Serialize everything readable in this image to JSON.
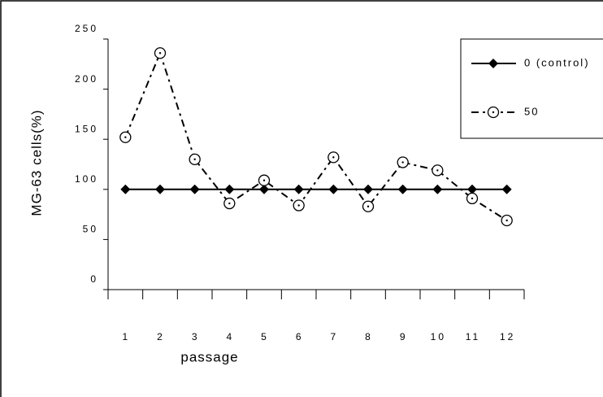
{
  "chart_data": {
    "type": "line",
    "xlabel": "passage",
    "ylabel": "MG-63 cells(%)",
    "categories": [
      "1",
      "2",
      "3",
      "4",
      "5",
      "6",
      "7",
      "8",
      "9",
      "10",
      "11",
      "12"
    ],
    "series": [
      {
        "name": "0 (control)",
        "color": "#000000",
        "marker": "diamond",
        "dashed": false,
        "values": [
          100,
          100,
          100,
          100,
          100,
          100,
          100,
          100,
          100,
          100,
          100,
          100
        ]
      },
      {
        "name": "50",
        "color": "#000000",
        "marker": "circle",
        "dashed": true,
        "values": [
          152,
          236,
          130,
          86,
          109,
          84,
          132,
          83,
          127,
          119,
          91,
          69
        ]
      }
    ],
    "ylim": [
      0,
      250
    ],
    "yticks": [
      0,
      50,
      100,
      150,
      200,
      250
    ],
    "legend": "upper right"
  }
}
